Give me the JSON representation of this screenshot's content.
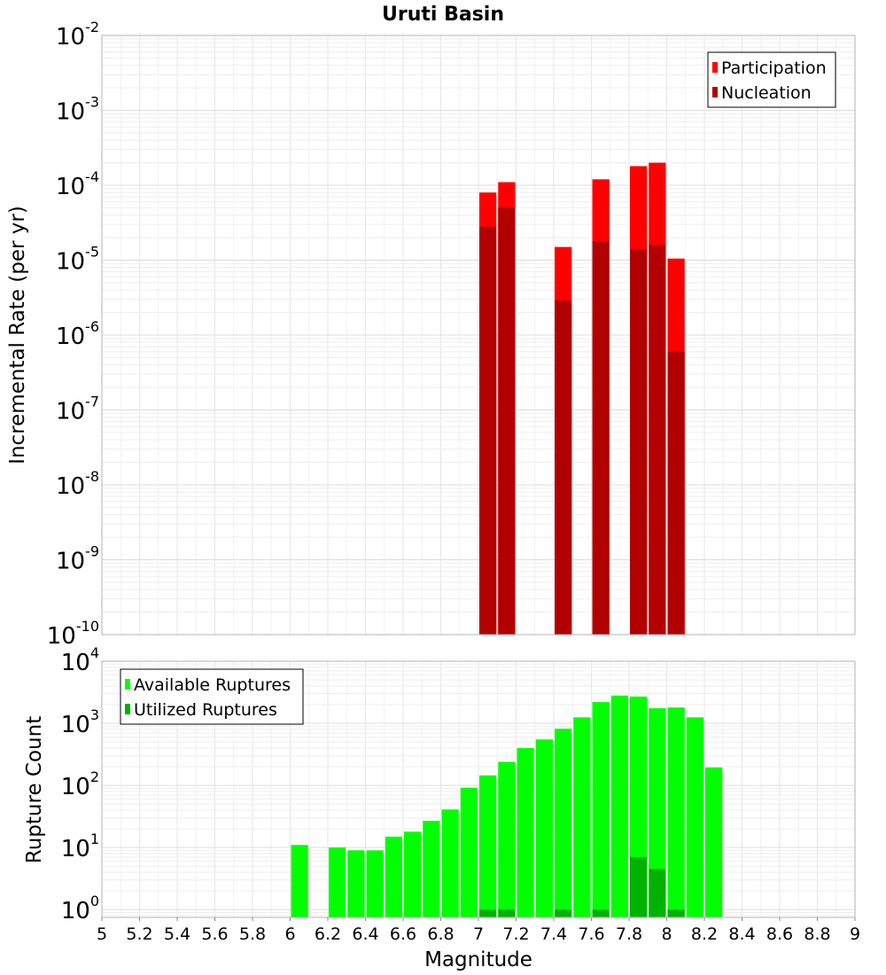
{
  "chart_data": [
    {
      "type": "bar",
      "title": "Uruti Basin",
      "xlabel": "",
      "ylabel": "Incremental Rate (per yr)",
      "yscale": "log",
      "ylim": [
        1e-10,
        0.01
      ],
      "xlim": [
        5,
        9
      ],
      "grid": true,
      "legend_position": "top-right",
      "ytick_labels": [
        "10^-10",
        "10^-9",
        "10^-8",
        "10^-7",
        "10^-6",
        "10^-5",
        "10^-4",
        "10^-3",
        "10^-2"
      ],
      "series": [
        {
          "name": "Participation",
          "color": "#ff0000",
          "x": [
            7.05,
            7.15,
            7.45,
            7.65,
            7.85,
            7.95,
            8.05
          ],
          "values": [
            8e-05,
            0.00011,
            1.5e-05,
            0.00012,
            0.00018,
            0.0002,
            1.05e-05
          ]
        },
        {
          "name": "Nucleation",
          "color": "#b20000",
          "x": [
            7.05,
            7.15,
            7.45,
            7.65,
            7.85,
            7.95,
            8.05
          ],
          "values": [
            2.8e-05,
            5e-05,
            2.9e-06,
            1.8e-05,
            1.4e-05,
            1.6e-05,
            6e-07
          ]
        }
      ]
    },
    {
      "type": "bar",
      "title": "",
      "xlabel": "Magnitude",
      "ylabel": "Rupture Count",
      "yscale": "log",
      "ylim": [
        0.75,
        10000
      ],
      "xlim": [
        5,
        9
      ],
      "grid": true,
      "legend_position": "top-left",
      "xtick_labels": [
        "5",
        "5.2",
        "5.4",
        "5.6",
        "5.8",
        "6",
        "6.2",
        "6.4",
        "6.6",
        "6.8",
        "7",
        "7.2",
        "7.4",
        "7.6",
        "7.8",
        "8",
        "8.2",
        "8.4",
        "8.6",
        "8.8",
        "9"
      ],
      "ytick_labels": [
        "10^0",
        "10^1",
        "10^2",
        "10^3",
        "10^4"
      ],
      "series": [
        {
          "name": "Available Ruptures",
          "color": "#00ff00",
          "x": [
            6.05,
            6.25,
            6.35,
            6.45,
            6.55,
            6.65,
            6.75,
            6.85,
            6.95,
            7.05,
            7.15,
            7.25,
            7.35,
            7.45,
            7.55,
            7.65,
            7.75,
            7.85,
            7.95,
            8.05,
            8.15,
            8.25
          ],
          "values": [
            11,
            10,
            9,
            9,
            15,
            18,
            27,
            41,
            92,
            145,
            240,
            400,
            550,
            820,
            1250,
            2200,
            2800,
            2700,
            1750,
            1800,
            1250,
            195
          ]
        },
        {
          "name": "Utilized Ruptures",
          "color": "#00b200",
          "x": [
            7.05,
            7.15,
            7.45,
            7.65,
            7.85,
            7.95,
            8.05
          ],
          "values": [
            1,
            1,
            1,
            1,
            7,
            4.5,
            1
          ]
        }
      ]
    }
  ]
}
